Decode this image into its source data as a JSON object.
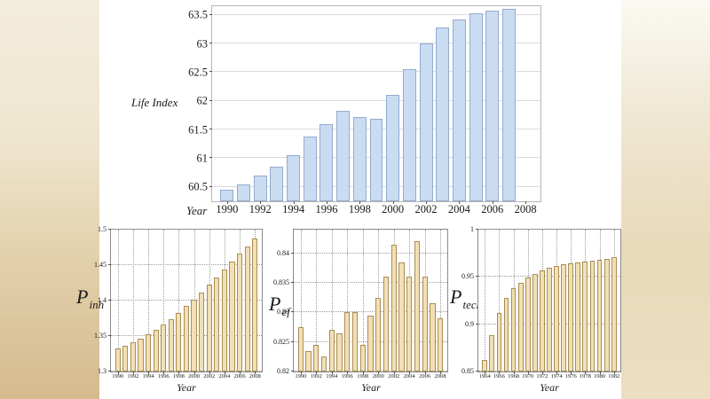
{
  "page": {
    "background": "#ffffff",
    "left_strip_colors": [
      "#f2ecdc",
      "#efe6cf",
      "#e2d0ab",
      "#d5ba8e"
    ],
    "right_strip_colors": [
      "#fbf9f2",
      "#efe7d2",
      "#e8d9ba",
      "#ecdec2"
    ]
  },
  "chart_data": [
    {
      "id": "life-index",
      "type": "bar",
      "title": "",
      "ylabel": "Life Index",
      "xlabel": "Year",
      "x": [
        1990,
        1991,
        1992,
        1993,
        1994,
        1995,
        1996,
        1997,
        1998,
        1999,
        2000,
        2001,
        2002,
        2003,
        2004,
        2005,
        2006,
        2007
      ],
      "values": [
        60.45,
        60.55,
        60.7,
        60.85,
        61.05,
        61.38,
        61.6,
        61.83,
        61.72,
        61.68,
        62.1,
        62.55,
        63.0,
        63.28,
        63.42,
        63.52,
        63.58,
        63.6
      ],
      "xlim": [
        1989.1,
        2008.9
      ],
      "ylim": [
        60.25,
        63.65
      ],
      "yticks": [
        60.5,
        61,
        61.5,
        62,
        62.5,
        63,
        63.5
      ],
      "ytick_labels": [
        "60.5",
        "61",
        "61.5",
        "62",
        "62.5",
        "63",
        "63.5"
      ],
      "xticks": [
        1990,
        1992,
        1994,
        1996,
        1998,
        2000,
        2002,
        2004,
        2006,
        2008
      ],
      "xtick_labels": [
        "1990",
        "1992",
        "1994",
        "1996",
        "1998",
        "2000",
        "2002",
        "2004",
        "2006",
        "2008"
      ],
      "bar_width": 0.8,
      "bar_fill": "#c9dcf2",
      "bar_border": "#93abcd",
      "grid_color": "#dcdcdc",
      "vgrid": false,
      "legend": "none"
    },
    {
      "id": "p-inh",
      "type": "bar",
      "title": "",
      "ylabel_main": "P",
      "ylabel_sub": "inh",
      "xlabel": "Year",
      "x": [
        1990,
        1991,
        1992,
        1993,
        1994,
        1995,
        1996,
        1997,
        1998,
        1999,
        2000,
        2001,
        2002,
        2003,
        2004,
        2005,
        2006,
        2007,
        2008
      ],
      "values": [
        1.332,
        1.336,
        1.341,
        1.346,
        1.352,
        1.359,
        1.366,
        1.374,
        1.383,
        1.392,
        1.401,
        1.411,
        1.422,
        1.433,
        1.444,
        1.455,
        1.466,
        1.476,
        1.488
      ],
      "xlim": [
        1989.1,
        2008.9
      ],
      "ylim": [
        1.3,
        1.5
      ],
      "yticks": [
        1.3,
        1.35,
        1.4,
        1.45,
        1.5
      ],
      "ytick_labels": [
        "1.3",
        "1.35",
        "1.4",
        "1.45",
        "1.5"
      ],
      "xticks": [
        1990,
        1992,
        1994,
        1996,
        1998,
        2000,
        2002,
        2004,
        2006,
        2008
      ],
      "xtick_labels": [
        "1990",
        "1992",
        "1994",
        "1996",
        "1998",
        "2000",
        "2002",
        "2004",
        "2006",
        "2008"
      ],
      "bar_width": 0.72,
      "bar_fill": "#f3dfb5",
      "bar_border": "#a98e55",
      "grid_color": "#9c9c9c",
      "vgrid": true,
      "legend": "none"
    },
    {
      "id": "p-ef",
      "type": "bar",
      "title": "",
      "ylabel_main": "P",
      "ylabel_sub": "ef",
      "xlabel": "Year",
      "x": [
        1990,
        1991,
        1992,
        1993,
        1994,
        1995,
        1996,
        1997,
        1998,
        1999,
        2000,
        2001,
        2002,
        2003,
        2004,
        2005,
        2006,
        2007,
        2008
      ],
      "values": [
        0.8275,
        0.8235,
        0.8245,
        0.8225,
        0.827,
        0.8265,
        0.83,
        0.83,
        0.8245,
        0.8295,
        0.8325,
        0.836,
        0.8415,
        0.8385,
        0.836,
        0.842,
        0.836,
        0.8315,
        0.829
      ],
      "xlim": [
        1989.1,
        2008.9
      ],
      "ylim": [
        0.82,
        0.844
      ],
      "yticks": [
        0.82,
        0.825,
        0.83,
        0.835,
        0.84
      ],
      "ytick_labels": [
        "0.82",
        "0.825",
        "0.83",
        "0.835",
        "0.84"
      ],
      "xticks": [
        1990,
        1992,
        1994,
        1996,
        1998,
        2000,
        2002,
        2004,
        2006,
        2008
      ],
      "xtick_labels": [
        "1990",
        "1992",
        "1994",
        "1996",
        "1998",
        "2000",
        "2002",
        "2004",
        "2006",
        "2008"
      ],
      "bar_width": 0.72,
      "bar_fill": "#f3dfb5",
      "bar_border": "#a98e55",
      "grid_color": "#9c9c9c",
      "vgrid": true,
      "legend": "none"
    },
    {
      "id": "p-tech",
      "type": "bar",
      "title": "",
      "ylabel_main": "P",
      "ylabel_sub": "tech",
      "xlabel": "Year",
      "x": [
        1964,
        1965,
        1966,
        1967,
        1968,
        1969,
        1970,
        1971,
        1972,
        1973,
        1974,
        1975,
        1976,
        1977,
        1978,
        1979,
        1980,
        1981,
        1982
      ],
      "values": [
        0.862,
        0.888,
        0.912,
        0.928,
        0.938,
        0.944,
        0.949,
        0.953,
        0.9565,
        0.9595,
        0.9615,
        0.963,
        0.9645,
        0.9655,
        0.9665,
        0.9675,
        0.9685,
        0.9695,
        0.971
      ],
      "xlim": [
        1963.1,
        1982.9
      ],
      "ylim": [
        0.85,
        1.0
      ],
      "yticks": [
        0.85,
        0.9,
        0.95,
        1
      ],
      "ytick_labels": [
        "0.85",
        "0.9",
        "0.95",
        "1"
      ],
      "xticks": [
        1964,
        1966,
        1968,
        1970,
        1972,
        1974,
        1976,
        1978,
        1980,
        1982
      ],
      "xtick_labels": [
        "1964",
        "1966",
        "1968",
        "1970",
        "1972",
        "1974",
        "1976",
        "1978",
        "1980",
        "1982"
      ],
      "bar_width": 0.72,
      "bar_fill": "#f3dfb5",
      "bar_border": "#a98e55",
      "grid_color": "#9c9c9c",
      "vgrid": true,
      "legend": "none"
    }
  ]
}
